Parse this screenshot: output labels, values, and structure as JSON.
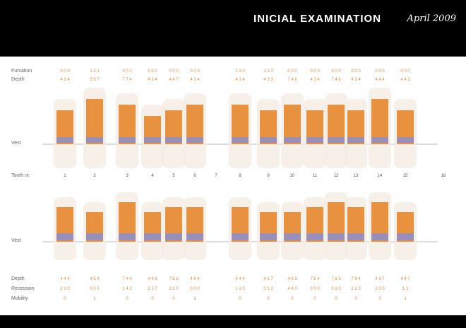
{
  "header": {
    "title": "INICIAL EXAMINATION",
    "date": "April 2009"
  },
  "chart_data": {
    "type": "bar",
    "row_labels": {
      "top": [
        "Furcation",
        "Depth"
      ],
      "top_mid": "Vest",
      "tooth_number": "Tooth nr.",
      "bottom_mid": "Vest",
      "bottom": [
        "Depth",
        "Recession",
        "Mobility"
      ]
    },
    "upper_teeth": [
      "1",
      "2",
      "3",
      "4",
      "5",
      "6",
      "7",
      "8",
      "9",
      "10",
      "11",
      "12",
      "13",
      "14",
      "15",
      "16"
    ],
    "upper_furcation": [
      "0 0 0",
      "1 2 1",
      "0 0 1",
      "0 0 0",
      "0 0 0",
      "0 0 0",
      "",
      "2 1 0",
      "1 1 0",
      "0 0 0",
      "0 0 0",
      "0 0 0",
      "0 0 0",
      "0 0 0",
      "0 0 0",
      ""
    ],
    "upper_depth": [
      "4 3 4",
      "5 6 7",
      "7 7 4",
      "4 3 4",
      "4 4 7",
      "4 3 4",
      "",
      "4 3 4",
      "4 3 3",
      "7 4 6",
      "4 3 4",
      "7 4 6",
      "4 3 4",
      "4 4 4",
      "4 4 3",
      ""
    ],
    "upper_values": [
      6,
      8,
      7,
      5,
      6,
      7,
      0,
      7,
      6,
      7,
      6,
      7,
      6,
      8,
      6,
      0
    ],
    "lower_values": [
      7,
      6,
      8,
      6,
      7,
      7,
      0,
      7,
      6,
      6,
      7,
      8,
      7,
      8,
      6,
      0
    ],
    "lower_depth": [
      "4 4 4",
      "4 5 4",
      "7 4 4",
      "4 4 6",
      "7 5 6",
      "4 6 4",
      "",
      "4 4 4",
      "4 1 7",
      "4 6 5",
      "7 5 4",
      "7 6 5",
      "7 6 4",
      "4 3 7",
      "4 4 7",
      ""
    ],
    "lower_recession": [
      "2 1 0",
      "0 0 0",
      "1 4 2",
      "2 2 7",
      "2 2 0",
      "0 0 0",
      "",
      "1 1 0",
      "0 1 2",
      "4 4 0",
      "0 0 0",
      "0 2 0",
      "2 2 0",
      "2 0 0",
      "1 1",
      ""
    ],
    "lower_mobility": [
      "0",
      "1",
      "0",
      "0",
      "0",
      "1",
      "",
      "0",
      "0",
      "0",
      "0",
      "0",
      "0",
      "0",
      "1",
      ""
    ]
  }
}
